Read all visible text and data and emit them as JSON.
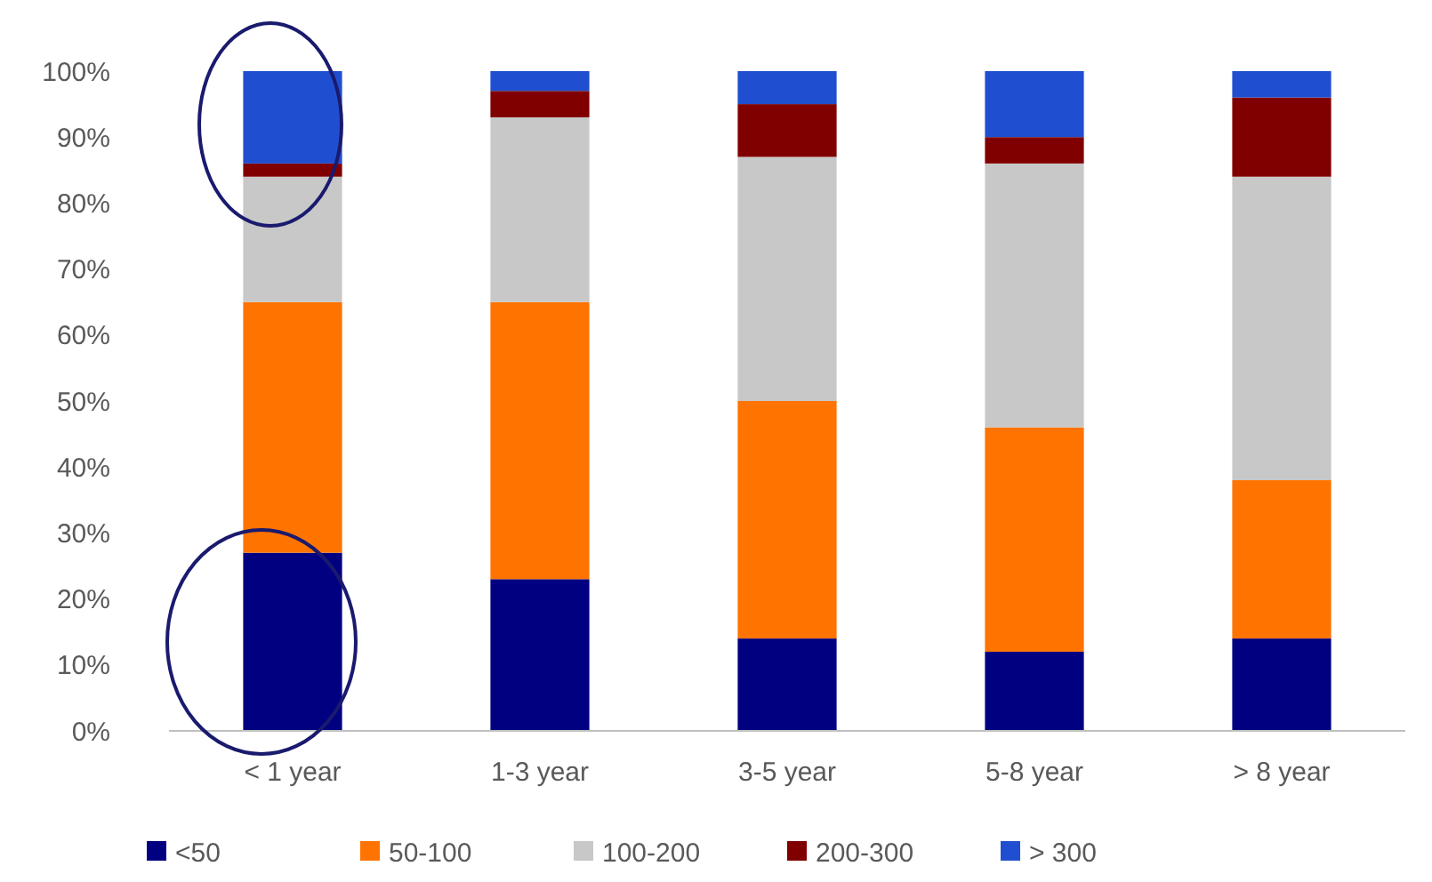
{
  "chart_data": {
    "type": "bar",
    "stacked": true,
    "categories": [
      "< 1 year",
      "1-3 year",
      "3-5 year",
      "5-8 year",
      "> 8 year"
    ],
    "series": [
      {
        "name": "<50",
        "color": "#000080",
        "values": [
          27,
          23,
          14,
          12,
          14
        ]
      },
      {
        "name": "50-100",
        "color": "#ff7300",
        "values": [
          38,
          42,
          36,
          34,
          24
        ]
      },
      {
        "name": "100-200",
        "color": "#c8c8c8",
        "values": [
          19,
          28,
          37,
          40,
          46
        ]
      },
      {
        "name": "200-300",
        "color": "#800000",
        "values": [
          2,
          4,
          8,
          4,
          12
        ]
      },
      {
        "name": "> 300",
        "color": "#1f4fd0",
        "values": [
          14,
          3,
          5,
          10,
          4
        ]
      }
    ],
    "ylim": [
      0,
      100
    ],
    "yticks": [
      {
        "value": 0,
        "label": "0%"
      },
      {
        "value": 10,
        "label": "10%"
      },
      {
        "value": 20,
        "label": "20%"
      },
      {
        "value": 30,
        "label": "30%"
      },
      {
        "value": 40,
        "label": "40%"
      },
      {
        "value": 50,
        "label": "50%"
      },
      {
        "value": 60,
        "label": "60%"
      },
      {
        "value": 70,
        "label": "70%"
      },
      {
        "value": 80,
        "label": "80%"
      },
      {
        "value": 90,
        "label": "90%"
      },
      {
        "value": 100,
        "label": "100%"
      }
    ],
    "grid": false,
    "legend": "bottom"
  }
}
